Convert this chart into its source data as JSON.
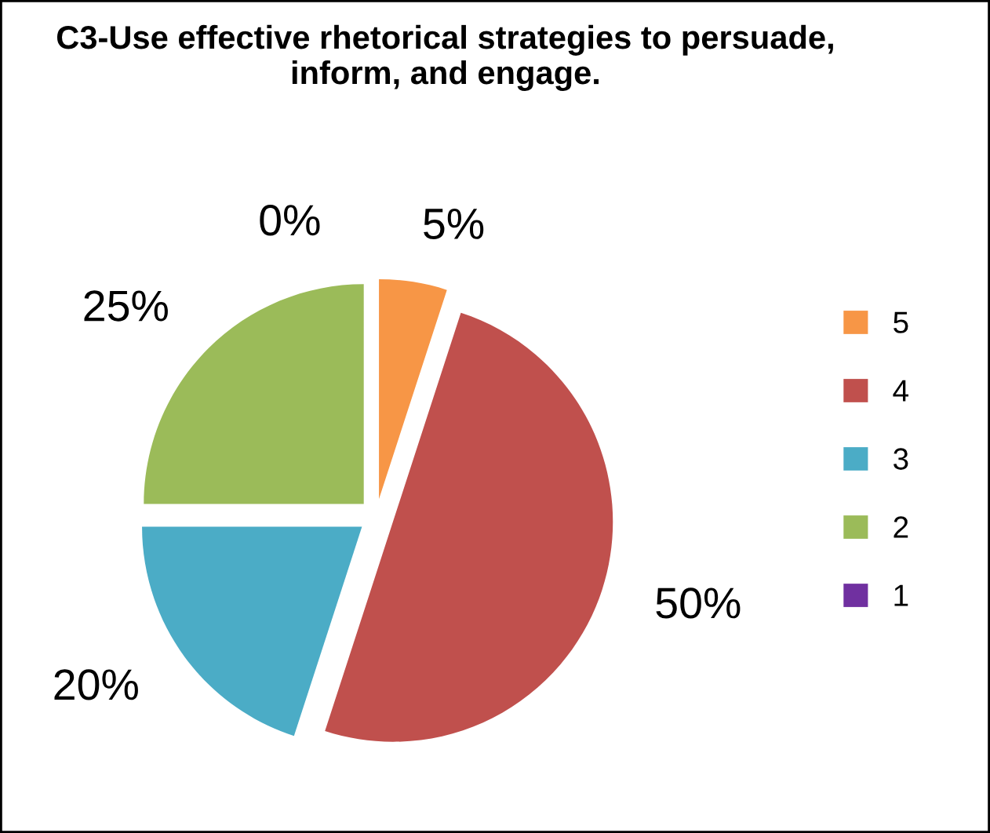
{
  "chart_data": {
    "type": "pie",
    "title": "C3-Use effective rhetorical strategies to persuade, inform, and engage.",
    "categories": [
      "5",
      "4",
      "3",
      "2",
      "1"
    ],
    "values": [
      5,
      50,
      20,
      25,
      0
    ],
    "colors": [
      "#f79646",
      "#c0504d",
      "#4bacc6",
      "#9bbb59",
      "#7030a0"
    ],
    "value_labels": [
      "5%",
      "50%",
      "20%",
      "25%",
      "0%"
    ],
    "legend": "right"
  }
}
